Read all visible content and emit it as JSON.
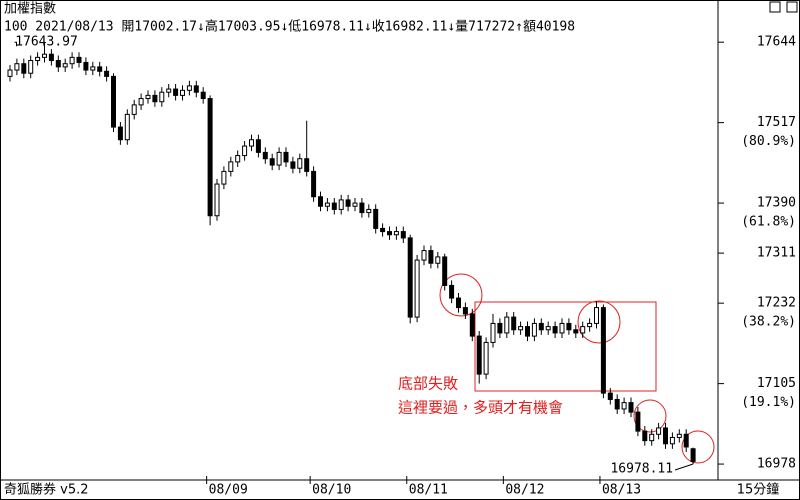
{
  "chart_data": {
    "type": "candlestick",
    "title": "加權指數",
    "info": "100 2021/08/13 開17002.17↓高17003.95↓低16978.11↓收16982.11↓量717272↑額40198",
    "footer_left": "奇狐勝券 v5.2",
    "period": "15分鐘",
    "annotations": [
      "底部失敗",
      "這裡要過，多頭才有機會"
    ],
    "color": "#000000",
    "ylim": [
      16956,
      17679
    ],
    "yticks": [
      17644,
      17517,
      17390,
      17311,
      17232,
      17105,
      16978
    ],
    "fib_levels": [
      {
        "value": 17517,
        "label": "(80.9%)"
      },
      {
        "value": 17390,
        "label": "(61.8%)"
      },
      {
        "value": 17232,
        "label": "(38.2%)"
      },
      {
        "value": 17105,
        "label": "(19.1%)"
      }
    ],
    "categories": [
      null,
      null,
      null,
      null,
      null,
      null,
      null,
      null,
      null,
      null,
      null,
      null,
      null,
      null,
      null,
      null,
      null,
      null,
      null,
      null,
      null,
      null,
      null,
      null,
      null,
      null,
      null,
      null,
      null,
      "08/09",
      null,
      null,
      null,
      null,
      null,
      null,
      null,
      null,
      null,
      null,
      null,
      null,
      null,
      null,
      "08/10",
      null,
      null,
      null,
      null,
      null,
      null,
      null,
      null,
      null,
      null,
      null,
      null,
      null,
      "08/11",
      null,
      null,
      null,
      null,
      null,
      null,
      null,
      null,
      null,
      null,
      null,
      null,
      null,
      "08/12",
      null,
      null,
      null,
      null,
      null,
      null,
      null,
      null,
      null,
      null,
      null,
      null,
      null,
      "08/13",
      null,
      null,
      null,
      null,
      null,
      null,
      null,
      null,
      null,
      null,
      null,
      null,
      null
    ],
    "open": [
      17590,
      17600,
      17610,
      17595,
      17615,
      17620,
      17625,
      17615,
      17605,
      17610,
      17620,
      17612,
      17600,
      17605,
      17598,
      17590,
      17510,
      17490,
      17530,
      17545,
      17555,
      17560,
      17550,
      17565,
      17570,
      17560,
      17568,
      17575,
      17565,
      17555,
      17370,
      17420,
      17440,
      17455,
      17465,
      17480,
      17490,
      17470,
      17460,
      17450,
      17470,
      17455,
      17445,
      17460,
      17440,
      17400,
      17385,
      17390,
      17380,
      17395,
      17385,
      17390,
      17375,
      17380,
      17350,
      17345,
      17340,
      17345,
      17335,
      17210,
      17300,
      17315,
      17295,
      17305,
      17260,
      17240,
      17225,
      17215,
      17180,
      17120,
      17170,
      17200,
      17185,
      17210,
      17190,
      17195,
      17180,
      17200,
      17190,
      17195,
      17185,
      17200,
      17190,
      17185,
      17195,
      17200,
      17225,
      17090,
      17080,
      17065,
      17075,
      17060,
      17030,
      17015,
      17025,
      17035,
      17010,
      17020,
      17025,
      17002.17
    ],
    "high": [
      17608,
      17618,
      17618,
      17623,
      17628,
      17643.97,
      17633,
      17623,
      17618,
      17628,
      17628,
      17620,
      17613,
      17613,
      17606,
      17595,
      17518,
      17538,
      17553,
      17563,
      17568,
      17568,
      17573,
      17578,
      17578,
      17576,
      17583,
      17583,
      17573,
      17560,
      17428,
      17448,
      17463,
      17473,
      17488,
      17498,
      17498,
      17478,
      17468,
      17478,
      17478,
      17463,
      17468,
      17520,
      17448,
      17408,
      17398,
      17398,
      17403,
      17403,
      17398,
      17398,
      17388,
      17388,
      17358,
      17353,
      17353,
      17353,
      17340,
      17308,
      17323,
      17323,
      17313,
      17310,
      17268,
      17248,
      17233,
      17223,
      17188,
      17178,
      17215,
      17208,
      17218,
      17218,
      17203,
      17203,
      17208,
      17208,
      17203,
      17203,
      17208,
      17208,
      17198,
      17203,
      17208,
      17235,
      17230,
      17098,
      17088,
      17083,
      17083,
      17068,
      17038,
      17033,
      17043,
      17043,
      17028,
      17033,
      17033,
      17003.95
    ],
    "low": [
      17582,
      17592,
      17587,
      17587,
      17607,
      17612,
      17607,
      17597,
      17597,
      17602,
      17604,
      17592,
      17592,
      17590,
      17582,
      17502,
      17482,
      17482,
      17522,
      17537,
      17547,
      17542,
      17542,
      17557,
      17552,
      17552,
      17560,
      17557,
      17547,
      17355,
      17362,
      17412,
      17432,
      17447,
      17457,
      17472,
      17462,
      17452,
      17442,
      17442,
      17447,
      17437,
      17437,
      17432,
      17392,
      17377,
      17377,
      17372,
      17372,
      17377,
      17377,
      17367,
      17367,
      17342,
      17337,
      17332,
      17332,
      17327,
      17200,
      17202,
      17292,
      17287,
      17287,
      17252,
      17232,
      17217,
      17207,
      17172,
      17105,
      17112,
      17162,
      17177,
      17177,
      17182,
      17182,
      17172,
      17172,
      17182,
      17182,
      17177,
      17177,
      17182,
      17177,
      17177,
      17187,
      17192,
      17082,
      17072,
      17057,
      17057,
      17052,
      17022,
      17007,
      17007,
      17017,
      17002,
      17002,
      17012,
      16997,
      16978.11
    ],
    "close": [
      17600,
      17610,
      17595,
      17615,
      17620,
      17625,
      17615,
      17605,
      17610,
      17620,
      17612,
      17600,
      17605,
      17598,
      17590,
      17510,
      17490,
      17530,
      17545,
      17555,
      17560,
      17550,
      17565,
      17570,
      17560,
      17568,
      17575,
      17565,
      17555,
      17370,
      17420,
      17440,
      17455,
      17465,
      17480,
      17490,
      17470,
      17460,
      17450,
      17470,
      17455,
      17445,
      17460,
      17440,
      17400,
      17385,
      17390,
      17380,
      17395,
      17385,
      17390,
      17375,
      17380,
      17350,
      17345,
      17340,
      17345,
      17335,
      17210,
      17300,
      17315,
      17295,
      17305,
      17260,
      17240,
      17225,
      17215,
      17180,
      17120,
      17170,
      17200,
      17185,
      17210,
      17190,
      17195,
      17180,
      17200,
      17190,
      17195,
      17185,
      17200,
      17190,
      17185,
      17195,
      17200,
      17225,
      17090,
      17080,
      17065,
      17075,
      17060,
      17030,
      17015,
      17025,
      17035,
      17010,
      17020,
      17025,
      17005,
      16982.11
    ]
  }
}
